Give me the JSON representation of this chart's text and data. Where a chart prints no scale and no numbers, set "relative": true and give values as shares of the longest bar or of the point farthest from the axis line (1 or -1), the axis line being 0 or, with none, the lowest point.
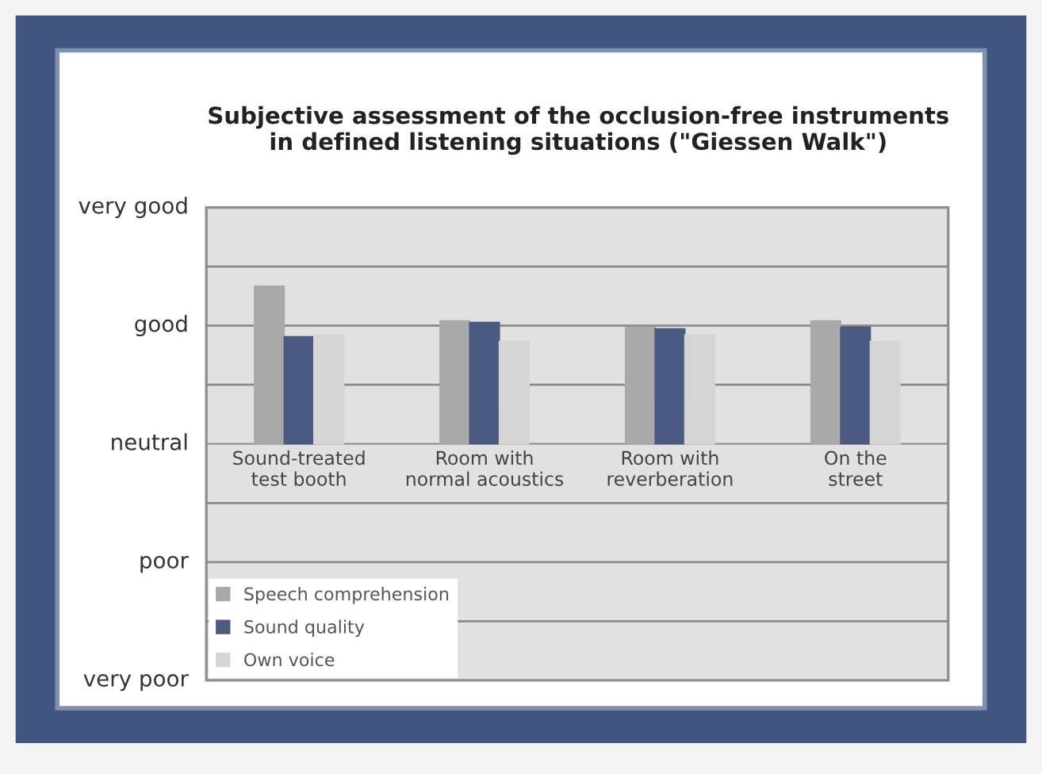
{
  "chart_data": {
    "type": "bar",
    "title": "Subjective assessment of the occlusion-free instruments\nin defined listening situations (\"Giessen Walk\")",
    "categories": [
      "Sound-treated\ntest booth",
      "Room with\nnormal acoustics",
      "Room with\nreverberation",
      "On the\nstreet"
    ],
    "series": [
      {
        "name": "Speech comprehension",
        "color": "#a9a9a9",
        "values": [
          1,
          0.78,
          0.74,
          0.78
        ]
      },
      {
        "name": "Sound quality",
        "color": "#4b5a80",
        "values": [
          0.68,
          0.77,
          0.73,
          0.74
        ]
      },
      {
        "name": "Own voice",
        "color": "#d5d5d5",
        "values": [
          0.69,
          0.65,
          0.69,
          0.65
        ]
      }
    ],
    "relative": true,
    "annotations": [
      "very good",
      "good",
      "neutral",
      "poor",
      "very poor"
    ],
    "ref_lines": [
      {
        "axis": "y",
        "value": 1.125,
        "color": "#8a8a8a"
      },
      {
        "axis": "y",
        "value": 0.75,
        "color": "#8a8a8a"
      },
      {
        "axis": "y",
        "value": 0.375,
        "color": "#8a8a8a"
      },
      {
        "axis": "y",
        "value": -0.375,
        "color": "#8a8a8a"
      },
      {
        "axis": "y",
        "value": -0.75,
        "color": "#8a8a8a"
      },
      {
        "axis": "y",
        "value": -1.125,
        "color": "#8a8a8a"
      }
    ],
    "legend": "bottom left"
  }
}
